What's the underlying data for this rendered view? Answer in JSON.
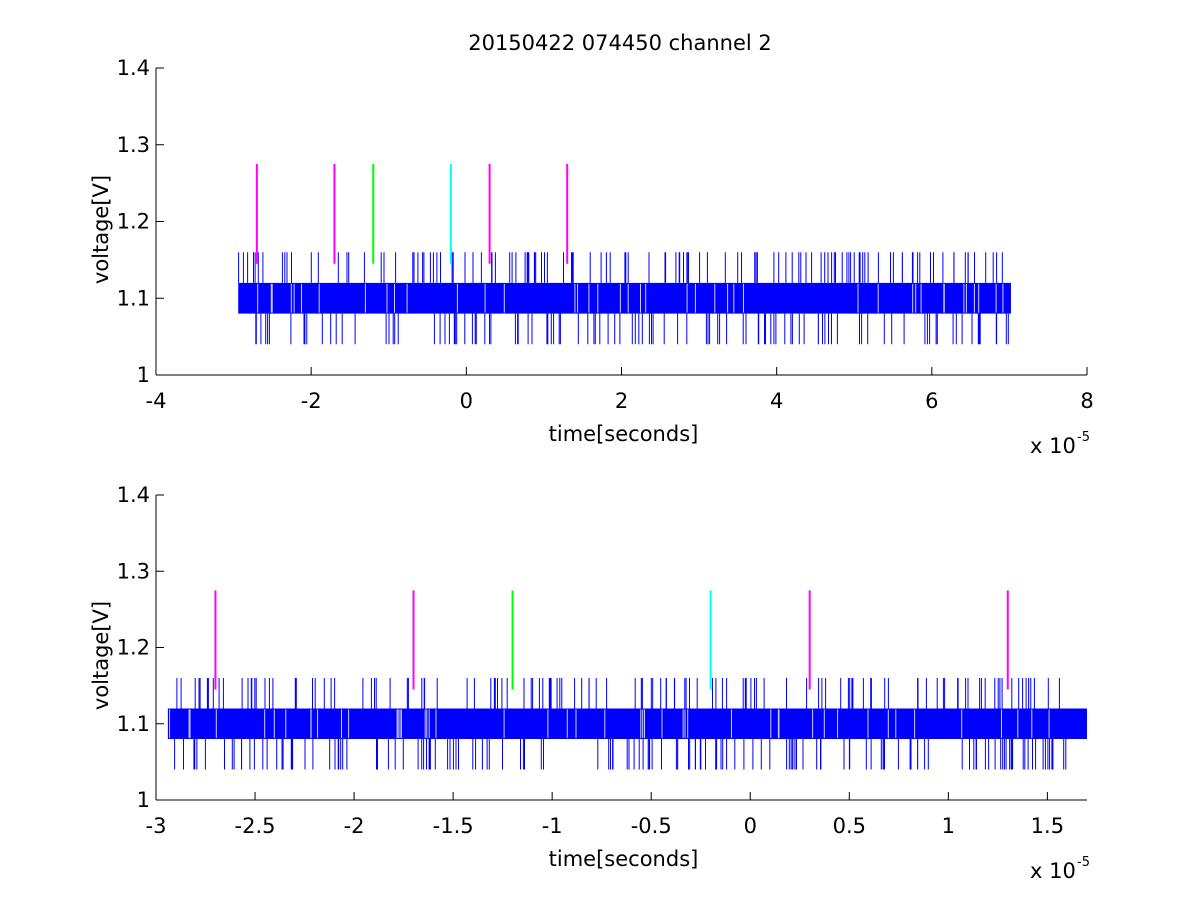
{
  "figure": {
    "title": "20150422 074450 channel 2"
  },
  "chart_data": [
    {
      "type": "line",
      "title": "20150422 074450 channel 2",
      "xlabel": "time[seconds]",
      "ylabel": "voltage[V]",
      "xlim": [
        -4e-05,
        8e-05
      ],
      "ylim": [
        1.0,
        1.4
      ],
      "xticks": [
        -4e-05,
        -2e-05,
        0,
        2e-05,
        4e-05,
        6e-05,
        8e-05
      ],
      "xtick_labels": [
        "-4",
        "-2",
        "0",
        "2",
        "4",
        "6",
        "8"
      ],
      "yticks": [
        1.0,
        1.1,
        1.2,
        1.3,
        1.4
      ],
      "ytick_labels": [
        "1",
        "1.1",
        "1.2",
        "1.3",
        "1.4"
      ],
      "x_exponent": {
        "base": "x 10",
        "power": "-5"
      },
      "grid": false,
      "signal": {
        "name": "voltage",
        "color": "#0000ff",
        "x_range": [
          -2.94e-05,
          7.02e-05
        ],
        "band": [
          1.08,
          1.12
        ],
        "spike_levels": [
          1.04,
          1.16
        ]
      },
      "markers": [
        {
          "x": -2.7e-05,
          "y_range": [
            1.145,
            1.275
          ],
          "color": "#ff00ff"
        },
        {
          "x": -1.7e-05,
          "y_range": [
            1.145,
            1.275
          ],
          "color": "#ff00ff"
        },
        {
          "x": -1.2e-05,
          "y_range": [
            1.145,
            1.275
          ],
          "color": "#00ff00"
        },
        {
          "x": -2e-06,
          "y_range": [
            1.145,
            1.275
          ],
          "color": "#00ffff"
        },
        {
          "x": 3e-06,
          "y_range": [
            1.145,
            1.275
          ],
          "color": "#ff00ff"
        },
        {
          "x": 1.3e-05,
          "y_range": [
            1.145,
            1.275
          ],
          "color": "#ff00ff"
        }
      ]
    },
    {
      "type": "line",
      "title": "",
      "xlabel": "time[seconds]",
      "ylabel": "voltage[V]",
      "xlim": [
        -3e-05,
        1.7e-05
      ],
      "ylim": [
        1.0,
        1.4
      ],
      "xticks": [
        -3e-05,
        -2.5e-05,
        -2e-05,
        -1.5e-05,
        -1e-05,
        -5e-06,
        0,
        5e-06,
        1e-05,
        1.5e-05
      ],
      "xtick_labels": [
        "-3",
        "-2.5",
        "-2",
        "-1.5",
        "-1",
        "-0.5",
        "0",
        "0.5",
        "1",
        "1.5"
      ],
      "yticks": [
        1.0,
        1.1,
        1.2,
        1.3,
        1.4
      ],
      "ytick_labels": [
        "1",
        "1.1",
        "1.2",
        "1.3",
        "1.4"
      ],
      "x_exponent": {
        "base": "x 10",
        "power": "-5"
      },
      "grid": false,
      "signal": {
        "name": "voltage",
        "color": "#0000ff",
        "x_range": [
          -2.94e-05,
          1.7e-05
        ],
        "band": [
          1.08,
          1.12
        ],
        "spike_levels": [
          1.04,
          1.16
        ]
      },
      "markers": [
        {
          "x": -2.7e-05,
          "y_range": [
            1.145,
            1.275
          ],
          "color": "#ff00ff"
        },
        {
          "x": -1.7e-05,
          "y_range": [
            1.145,
            1.275
          ],
          "color": "#ff00ff"
        },
        {
          "x": -1.2e-05,
          "y_range": [
            1.145,
            1.275
          ],
          "color": "#00ff00"
        },
        {
          "x": -2e-06,
          "y_range": [
            1.145,
            1.275
          ],
          "color": "#00ffff"
        },
        {
          "x": 3e-06,
          "y_range": [
            1.145,
            1.275
          ],
          "color": "#ff00ff"
        },
        {
          "x": 1.3e-05,
          "y_range": [
            1.145,
            1.275
          ],
          "color": "#ff00ff"
        }
      ]
    }
  ]
}
